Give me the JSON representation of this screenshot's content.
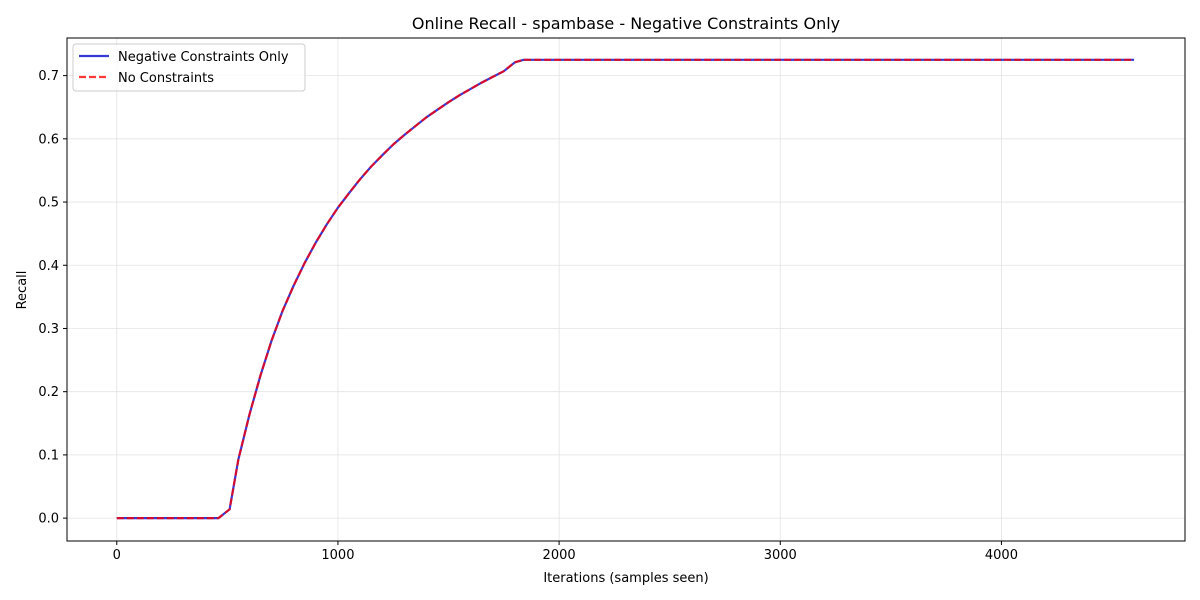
{
  "chart_data": {
    "type": "line",
    "title": "Online Recall - spambase - Negative Constraints Only",
    "xlabel": "Iterations (samples seen)",
    "ylabel": "Recall",
    "xlim": [
      -225,
      4830
    ],
    "ylim": [
      -0.0362,
      0.7595
    ],
    "xticks": [
      0,
      1000,
      2000,
      3000,
      4000
    ],
    "yticks": [
      0.0,
      0.1,
      0.2,
      0.3,
      0.4,
      0.5,
      0.6,
      0.7
    ],
    "xtick_labels": [
      "0",
      "1000",
      "2000",
      "3000",
      "4000"
    ],
    "ytick_labels": [
      "0.0",
      "0.1",
      "0.2",
      "0.3",
      "0.4",
      "0.5",
      "0.6",
      "0.7"
    ],
    "grid": true,
    "legend_position": "upper left",
    "series": [
      {
        "name": "Negative Constraints Only",
        "color": "#0000cc",
        "style": "solid",
        "x": [
          0,
          100,
          200,
          300,
          400,
          460,
          510,
          550,
          600,
          650,
          700,
          750,
          800,
          850,
          900,
          950,
          1000,
          1050,
          1100,
          1150,
          1200,
          1250,
          1300,
          1350,
          1400,
          1450,
          1500,
          1550,
          1600,
          1650,
          1700,
          1750,
          1800,
          1840,
          2000,
          2500,
          3000,
          3500,
          4000,
          4500,
          4600
        ],
        "y": [
          0.0,
          0.0,
          0.0,
          0.0,
          0.0,
          0.0,
          0.014,
          0.093,
          0.164,
          0.226,
          0.281,
          0.328,
          0.368,
          0.404,
          0.436,
          0.465,
          0.491,
          0.514,
          0.536,
          0.556,
          0.574,
          0.591,
          0.606,
          0.62,
          0.634,
          0.646,
          0.658,
          0.669,
          0.679,
          0.689,
          0.698,
          0.707,
          0.721,
          0.725,
          0.725,
          0.725,
          0.725,
          0.725,
          0.725,
          0.725,
          0.725
        ]
      },
      {
        "name": "No Constraints",
        "color": "#ff0000",
        "style": "dashed",
        "x": [
          0,
          100,
          200,
          300,
          400,
          460,
          510,
          550,
          600,
          650,
          700,
          750,
          800,
          850,
          900,
          950,
          1000,
          1050,
          1100,
          1150,
          1200,
          1250,
          1300,
          1350,
          1400,
          1450,
          1500,
          1550,
          1600,
          1650,
          1700,
          1750,
          1800,
          1840,
          2000,
          2500,
          3000,
          3500,
          4000,
          4500,
          4600
        ],
        "y": [
          0.0,
          0.0,
          0.0,
          0.0,
          0.0,
          0.0,
          0.014,
          0.093,
          0.164,
          0.226,
          0.281,
          0.328,
          0.368,
          0.404,
          0.436,
          0.465,
          0.491,
          0.514,
          0.536,
          0.556,
          0.574,
          0.591,
          0.606,
          0.62,
          0.634,
          0.646,
          0.658,
          0.669,
          0.679,
          0.689,
          0.698,
          0.707,
          0.721,
          0.725,
          0.725,
          0.725,
          0.725,
          0.725,
          0.725,
          0.725,
          0.725
        ]
      }
    ]
  }
}
